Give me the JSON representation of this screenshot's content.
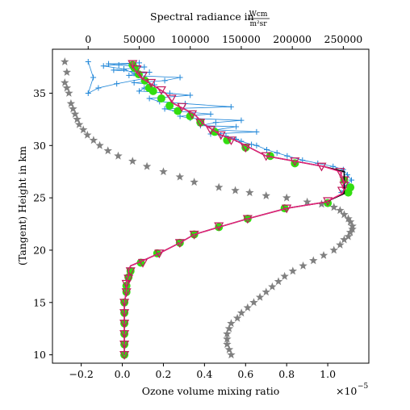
{
  "chart_data": {
    "type": "line",
    "xlabel": "Ozone volume mixing ratio",
    "x_offset_text": "×10",
    "x_offset_exp": "−5",
    "ylabel": "(Tangent) Height in km",
    "x2label_prefix": "Spectral radiance in ",
    "x2label_num": "Wcm",
    "x2label_den": "m²sr",
    "xlim": [
      -0.34,
      1.2
    ],
    "ylim": [
      9.2,
      39.2
    ],
    "x2lim": [
      -35000,
      275000
    ],
    "xticks": [
      -0.2,
      0.0,
      0.2,
      0.4,
      0.6,
      0.8,
      1.0
    ],
    "xtick_labels": [
      "−0.2",
      "0.0",
      "0.2",
      "0.4",
      "0.6",
      "0.8",
      "1.0"
    ],
    "yticks": [
      10,
      15,
      20,
      25,
      30,
      35
    ],
    "ytick_labels": [
      "10",
      "15",
      "20",
      "25",
      "30",
      "35"
    ],
    "x2ticks": [
      0,
      50000,
      100000,
      150000,
      200000,
      250000
    ],
    "x2tick_labels": [
      "0",
      "50000",
      "100000",
      "150000",
      "200000",
      "250000"
    ],
    "grid": false,
    "legend": "none",
    "series": [
      {
        "kind": "line",
        "axis": "bottom",
        "color": "#000000",
        "x": [
          0.01,
          0.01,
          0.01,
          0.01,
          0.01,
          0.01,
          0.02,
          0.02,
          0.03,
          0.03,
          0.04,
          0.1,
          0.18,
          0.28,
          0.35,
          0.47,
          0.61,
          0.8,
          0.99,
          1.08,
          1.08,
          1.08,
          1.08,
          1.08,
          1.08,
          0.98,
          0.84,
          0.7,
          0.62,
          0.55,
          0.48,
          0.44,
          0.4,
          0.35,
          0.3,
          0.25,
          0.21,
          0.17,
          0.13,
          0.09,
          0.07,
          0.05,
          0.05
        ],
        "y": [
          10,
          11,
          12,
          13,
          14,
          15,
          16,
          17,
          17.5,
          18,
          18.5,
          19,
          19.7,
          20.7,
          21.5,
          22.2,
          23,
          24,
          24.6,
          25.4,
          25.8,
          26,
          26.5,
          27,
          27.5,
          28,
          28.5,
          29,
          29.8,
          30.5,
          31,
          31.5,
          32,
          33,
          33.5,
          34,
          35,
          35.5,
          36,
          36.5,
          37,
          37.5,
          38
        ]
      },
      {
        "kind": "line",
        "axis": "bottom",
        "color": "#e8217a",
        "x": [
          0.01,
          0.01,
          0.01,
          0.01,
          0.01,
          0.01,
          0.02,
          0.02,
          0.03,
          0.03,
          0.04,
          0.1,
          0.18,
          0.28,
          0.35,
          0.47,
          0.61,
          0.8,
          0.99,
          1.07,
          1.08,
          1.07,
          1.08,
          1.07,
          1.06,
          0.98,
          0.84,
          0.7,
          0.62,
          0.55,
          0.48,
          0.44,
          0.4,
          0.35,
          0.3,
          0.25,
          0.21,
          0.17,
          0.13,
          0.09,
          0.07,
          0.05,
          0.05
        ],
        "y": [
          10,
          11,
          12,
          13,
          14,
          15,
          16,
          17,
          17.5,
          18,
          18.5,
          19,
          19.7,
          20.7,
          21.5,
          22.2,
          23,
          24,
          24.6,
          25.4,
          25.8,
          26,
          26.5,
          27,
          27.5,
          28,
          28.5,
          29,
          29.8,
          30.5,
          31,
          31.5,
          32,
          33,
          33.5,
          34,
          35,
          35.5,
          36,
          36.5,
          37,
          37.5,
          38
        ]
      },
      {
        "kind": "triangles",
        "axis": "bottom",
        "color": "#c0185a",
        "x": [
          0.01,
          0.01,
          0.01,
          0.01,
          0.01,
          0.01,
          0.02,
          0.02,
          0.03,
          0.04,
          0.1,
          0.18,
          0.28,
          0.35,
          0.47,
          0.61,
          0.8,
          1.0,
          1.07,
          1.08,
          1.08,
          1.06,
          0.97,
          0.84,
          0.7,
          0.6,
          0.53,
          0.48,
          0.43,
          0.38,
          0.34,
          0.29,
          0.24,
          0.19,
          0.14,
          0.1,
          0.07,
          0.05
        ],
        "y": [
          10,
          11,
          12,
          13,
          14,
          15,
          16,
          16.8,
          17.3,
          18,
          18.8,
          19.7,
          20.7,
          21.5,
          22.3,
          23,
          24,
          24.7,
          25.7,
          26.2,
          26.7,
          27.5,
          28,
          28.5,
          29,
          29.8,
          30.5,
          31,
          31.5,
          32.2,
          33,
          33.7,
          34.5,
          35.3,
          36,
          36.7,
          37.3,
          37.8
        ]
      },
      {
        "kind": "dots",
        "axis": "bottom",
        "color": "#33dd11",
        "x": [
          0.01,
          0.01,
          0.01,
          0.01,
          0.01,
          0.01,
          0.02,
          0.02,
          0.03,
          0.04,
          0.09,
          0.17,
          0.28,
          0.35,
          0.47,
          0.61,
          0.79,
          1.0,
          1.1,
          1.11,
          1.08,
          0.84,
          0.72,
          0.6,
          0.51,
          0.45,
          0.38,
          0.33,
          0.27,
          0.23,
          0.19,
          0.15,
          0.13,
          0.11,
          0.08,
          0.06,
          0.05
        ],
        "y": [
          10,
          11,
          12,
          13,
          14,
          15,
          16,
          16.6,
          17.4,
          18,
          18.8,
          19.7,
          20.7,
          21.5,
          22.2,
          23,
          24,
          24.5,
          25.5,
          26,
          26.7,
          28.3,
          29,
          29.8,
          30.5,
          31.3,
          32.2,
          32.8,
          33.3,
          33.8,
          34.5,
          35.2,
          35.5,
          36.2,
          36.8,
          37.4,
          37.7
        ]
      },
      {
        "kind": "plus-line",
        "axis": "top",
        "color": "#1f86d8",
        "x": [
          248000,
          252000,
          258000,
          254000,
          250000,
          240000,
          225000,
          210000,
          195000,
          185000,
          175000,
          165000,
          160000,
          150000,
          145000,
          135000,
          130000,
          120000,
          165000,
          125000,
          145000,
          110000,
          125000,
          150000,
          100000,
          90000,
          120000,
          85000,
          75000,
          140000,
          95000,
          70000,
          60000,
          100000,
          80000,
          50000,
          55000,
          65000,
          45000,
          75000,
          90000,
          40000,
          60000,
          25000,
          35000,
          55000,
          30000,
          20000,
          50000,
          15000,
          35000,
          45000,
          55000,
          28000,
          10000,
          0,
          5000,
          0
        ],
        "y": [
          25.5,
          26,
          26.7,
          27.2,
          27.7,
          28,
          28.3,
          28.6,
          29,
          29.3,
          29.6,
          30,
          30.1,
          30.4,
          30.6,
          30.9,
          31,
          31.1,
          31.3,
          31.5,
          31.8,
          31.9,
          32.2,
          32.4,
          32.6,
          32.8,
          33,
          33.3,
          33.5,
          33.7,
          34,
          34.2,
          34.5,
          34.8,
          35,
          35.2,
          35.5,
          35.8,
          36,
          36.2,
          36.5,
          36.7,
          37,
          37.2,
          37.3,
          37.5,
          37.7,
          37.8,
          37.9,
          37.6,
          37.3,
          36.9,
          36.4,
          35.9,
          35.5,
          35,
          36.5,
          38
        ]
      },
      {
        "kind": "stars",
        "axis": "bottom",
        "color": "#808080",
        "x": [
          0.53,
          0.52,
          0.51,
          0.51,
          0.51,
          0.52,
          0.53,
          0.56,
          0.58,
          0.61,
          0.64,
          0.67,
          0.7,
          0.73,
          0.76,
          0.79,
          0.83,
          0.88,
          0.93,
          0.98,
          1.03,
          1.06,
          1.08,
          1.1,
          1.11,
          1.12,
          1.12,
          1.11,
          1.1,
          1.08,
          1.06,
          1.03,
          0.97,
          0.9,
          0.8,
          0.7,
          0.62,
          0.55,
          0.47,
          0.35,
          0.28,
          0.2,
          0.12,
          0.05,
          -0.02,
          -0.07,
          -0.11,
          -0.14,
          -0.17,
          -0.19,
          -0.21,
          -0.22,
          -0.23,
          -0.24,
          -0.25,
          -0.26,
          -0.27,
          -0.28,
          -0.27,
          -0.28
        ],
        "y": [
          10,
          10.5,
          11,
          11.5,
          12,
          12.5,
          13,
          13.5,
          14,
          14.5,
          15,
          15.5,
          16,
          16.5,
          17,
          17.5,
          18,
          18.5,
          19,
          19.5,
          20,
          20.5,
          21,
          21.3,
          21.7,
          22,
          22.3,
          22.7,
          23,
          23.4,
          23.8,
          24.1,
          24.4,
          24.6,
          25,
          25.2,
          25.5,
          25.7,
          26,
          26.5,
          27,
          27.5,
          28,
          28.5,
          29,
          29.5,
          30,
          30.5,
          31,
          31.5,
          32,
          32.5,
          33,
          33.5,
          34,
          35,
          35.5,
          36,
          37,
          38
        ]
      }
    ]
  }
}
